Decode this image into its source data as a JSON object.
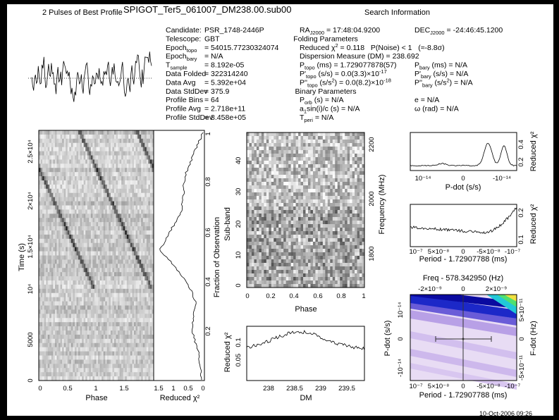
{
  "header": {
    "profile_title": "2 Pulses of Best Profile",
    "filename": "SPIGOT_Ter5_061007_DM238.00.sub00",
    "search_title": "Search Information"
  },
  "info": {
    "col1": [
      {
        "label": [
          {
            "t": "Candidate:"
          }
        ],
        "value": "PSR_1748-2446P"
      },
      {
        "label": [
          {
            "t": "Telescope:"
          }
        ],
        "value": "GBT"
      },
      {
        "label": [
          {
            "t": "Epoch"
          },
          {
            "sub": "topo"
          }
        ],
        "value": "= 54015.77230324074"
      },
      {
        "label": [
          {
            "t": "Epoch"
          },
          {
            "sub": "bary"
          }
        ],
        "value": "= N/A"
      },
      {
        "label": [
          {
            "t": "T"
          },
          {
            "sub": "sample"
          }
        ],
        "value": "= 8.192e-05"
      },
      {
        "label": [
          {
            "t": "Data Folded"
          }
        ],
        "value": "= 322314240"
      },
      {
        "label": [
          {
            "t": "Data Avg"
          }
        ],
        "value": "= 5.392e+04"
      },
      {
        "label": [
          {
            "t": "Data StdDev"
          }
        ],
        "value": "= 375.9"
      },
      {
        "label": [
          {
            "t": "Profile Bins"
          }
        ],
        "value": "= 64"
      },
      {
        "label": [
          {
            "t": "Profile Avg"
          }
        ],
        "value": "= 2.718e+11"
      },
      {
        "label": [
          {
            "t": "Profile StdDev"
          }
        ],
        "value": "= 8.458e+05"
      }
    ],
    "col2": [
      {
        "segments": [
          {
            "t": "RA"
          },
          {
            "sub": "J2000"
          },
          {
            "t": " = 17:48:04.9200"
          }
        ]
      },
      {
        "heading": "Folding Parameters"
      },
      {
        "segments": [
          {
            "t": "Reduced χ"
          },
          {
            "sup": "2"
          },
          {
            "t": " = 0.118   P(Noise) < 1   (≈-8.8σ)"
          }
        ]
      },
      {
        "segments": [
          {
            "t": "Dispersion Measure (DM) = 238.692"
          }
        ]
      },
      {
        "segments": [
          {
            "t": "P"
          },
          {
            "sub": "topo"
          },
          {
            "t": " (ms) = 1.729077878(57)"
          }
        ]
      },
      {
        "segments": [
          {
            "t": "P'"
          },
          {
            "sub": "topo"
          },
          {
            "t": " (s/s) = 0.0(3.3)×10"
          },
          {
            "sup": "-17"
          }
        ]
      },
      {
        "segments": [
          {
            "t": "P''"
          },
          {
            "sub": "topo"
          },
          {
            "t": " (s/s"
          },
          {
            "sup": "2"
          },
          {
            "t": ") = 0.0(8.2)×10"
          },
          {
            "sup": "-18"
          }
        ]
      },
      {
        "heading": "Binary Parameters"
      },
      {
        "segments": [
          {
            "t": "P"
          },
          {
            "sub": "orb"
          },
          {
            "t": " (s) = N/A"
          }
        ]
      },
      {
        "segments": [
          {
            "t": "a"
          },
          {
            "sub": "1"
          },
          {
            "t": "sin(i)/c (s) = N/A"
          }
        ]
      },
      {
        "segments": [
          {
            "t": "T"
          },
          {
            "sub": "peri"
          },
          {
            "t": " = N/A"
          }
        ]
      }
    ],
    "col3": [
      {
        "segments": [
          {
            "t": "DEC"
          },
          {
            "sub": "J2000"
          },
          {
            "t": " = -24:46:45.1200"
          }
        ]
      },
      {
        "segments": [
          {
            "t": "P"
          },
          {
            "sub": "bary"
          },
          {
            "t": " (ms) = N/A"
          }
        ]
      },
      {
        "segments": [
          {
            "t": "P'"
          },
          {
            "sub": "bary"
          },
          {
            "t": " (s/s) = N/A"
          }
        ]
      },
      {
        "segments": [
          {
            "t": "P''"
          },
          {
            "sub": "bary"
          },
          {
            "t": " (s/s"
          },
          {
            "sup": "2"
          },
          {
            "t": ") = N/A"
          }
        ]
      },
      {
        "segments": [
          {
            "t": "e = N/A"
          }
        ]
      },
      {
        "segments": [
          {
            "t": "ω (rad) = N/A"
          }
        ]
      }
    ]
  },
  "panels": {
    "time_phase": {
      "xlabel": "Phase",
      "ylabel": "Time (s)",
      "xticks": [
        "0",
        "0.5",
        "1",
        "1.5"
      ],
      "yticks": [
        "0",
        "5000",
        "10⁴",
        "1.5×10⁴",
        "2×10⁴",
        "2.5×10⁴"
      ]
    },
    "chi_fraction": {
      "xlabel": "Reduced χ²",
      "y2label": "Fraction of Observation",
      "xticks": [
        "1.5",
        "1",
        "0.5",
        "0"
      ],
      "y2ticks": [
        "0.2",
        "0.4",
        "0.6",
        "0.8",
        "1"
      ]
    },
    "subband": {
      "xlabel": "Phase",
      "ylabel": "Sub-band",
      "y2label": "Frequency (MHz)",
      "xticks": [
        "0",
        "0.2",
        "0.4",
        "0.6",
        "0.8",
        "1"
      ],
      "yticks": [
        "0",
        "10",
        "20",
        "30",
        "40"
      ],
      "y2ticks": [
        "1800",
        "2000",
        "2200"
      ]
    },
    "dm": {
      "xlabel": "DM",
      "ylabel": "Reduced χ²",
      "xticks": [
        "238",
        "238.5",
        "239",
        "239.5"
      ],
      "yticks": [
        "0.05",
        "0.1"
      ]
    },
    "pdot": {
      "xlabel": "P-dot (s/s)",
      "y2label": "Reduced χ²",
      "xticks": [
        "10⁻¹⁴",
        "0",
        "-10⁻¹⁴"
      ],
      "y2ticks": [
        "0.2",
        "0.4"
      ]
    },
    "period": {
      "xlabel": "Period - 1.72907788 (ms)",
      "y2label": "Reduced χ²",
      "xticks": [
        "10⁻⁷",
        "5×10⁻⁸",
        "0",
        "-5×10⁻⁸",
        "-10⁻⁷"
      ],
      "y2ticks": [
        "0.1",
        "0.2"
      ]
    },
    "p_pdot": {
      "xlabel": "Period - 1.72907788 (ms)",
      "x2label": "Freq - 578.342950 (Hz)",
      "ylabel": "P-dot (s/s)",
      "y2label": "F-dot (Hz)",
      "xticks": [
        "10⁻⁷",
        "5×10⁻⁸",
        "0",
        "-5×10⁻⁸",
        "-10⁻⁷"
      ],
      "x2ticks": [
        "-2×10⁻⁹",
        "0",
        "2×10⁻⁹"
      ],
      "yticks": [
        "10⁻¹⁴",
        "0",
        "-10⁻¹⁴"
      ],
      "y2ticks": [
        "5×10⁻¹¹",
        "0",
        "-5×10⁻¹¹"
      ]
    }
  },
  "timestamp": "10-Oct-2006 09:26"
}
